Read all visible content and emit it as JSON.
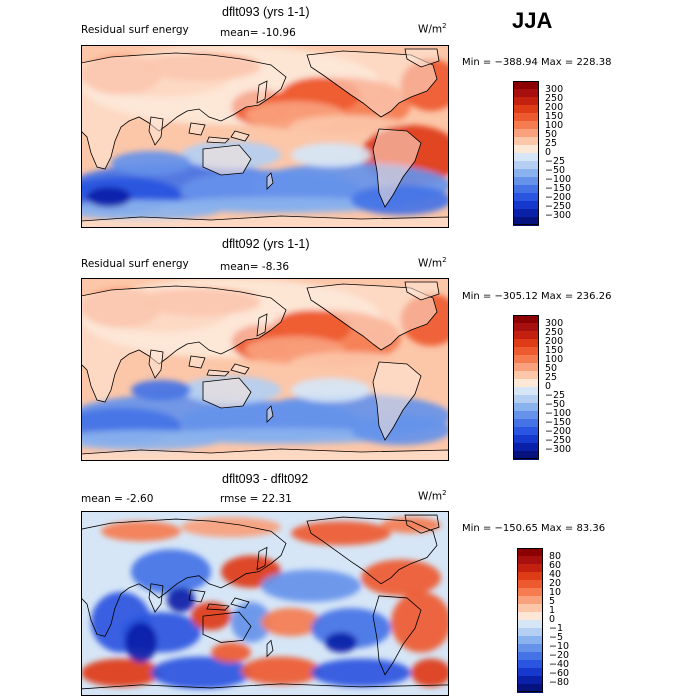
{
  "season": "JJA",
  "panels": [
    {
      "title": "dflt093 (yrs 1-1)",
      "left_label": "Residual surf energy",
      "stat_label": "mean=  -10.96",
      "units_base": "W/m",
      "units_exp": "2",
      "min_max": "Min = −388.94  Max =  228.38",
      "kind": "field93",
      "scale": {
        "colors": [
          "#8b0000",
          "#a81010",
          "#c42010",
          "#de3b17",
          "#ee5a30",
          "#f57c50",
          "#f9a07c",
          "#fcc6a8",
          "#fde8d8",
          "#d6e6f7",
          "#b4cff2",
          "#8ab2ee",
          "#6692ea",
          "#4573e6",
          "#2a55e0",
          "#1738cc",
          "#0b20a8",
          "#06127e"
        ],
        "ticks": [
          "300",
          "250",
          "200",
          "150",
          "100",
          "50",
          "25",
          "0",
          "−25",
          "−50",
          "−100",
          "−150",
          "−200",
          "−250",
          "−300"
        ]
      }
    },
    {
      "title": "dflt092 (yrs 1-1)",
      "left_label": "Residual surf energy",
      "stat_label": "mean=   -8.36",
      "units_base": "W/m",
      "units_exp": "2",
      "min_max": "Min = −305.12  Max =  236.26",
      "kind": "field92",
      "scale": {
        "colors": [
          "#8b0000",
          "#a81010",
          "#c42010",
          "#de3b17",
          "#ee5a30",
          "#f57c50",
          "#f9a07c",
          "#fcc6a8",
          "#fde8d8",
          "#d6e6f7",
          "#b4cff2",
          "#8ab2ee",
          "#6692ea",
          "#4573e6",
          "#2a55e0",
          "#1738cc",
          "#0b20a8",
          "#06127e"
        ],
        "ticks": [
          "300",
          "250",
          "200",
          "150",
          "100",
          "50",
          "25",
          "0",
          "−25",
          "−50",
          "−100",
          "−150",
          "−200",
          "−250",
          "−300"
        ]
      }
    },
    {
      "title": "dflt093 - dflt092",
      "left_label": "mean =   -2.60",
      "stat_label": "rmse =   22.31",
      "units_base": "W/m",
      "units_exp": "2",
      "min_max": "Min = −150.65  Max =   83.36",
      "kind": "diff",
      "scale": {
        "colors": [
          "#8b0000",
          "#a81010",
          "#c42010",
          "#de3b17",
          "#ee5a30",
          "#f57c50",
          "#f9a07c",
          "#fcc6a8",
          "#fde8d8",
          "#d6e6f7",
          "#b4cff2",
          "#8ab2ee",
          "#6692ea",
          "#4573e6",
          "#2a55e0",
          "#1738cc",
          "#0b20a8",
          "#06127e"
        ],
        "ticks": [
          "80",
          "60",
          "40",
          "20",
          "10",
          "5",
          "1",
          "0",
          "−1",
          "−5",
          "−10",
          "−20",
          "−40",
          "−60",
          "−80"
        ]
      }
    }
  ]
}
